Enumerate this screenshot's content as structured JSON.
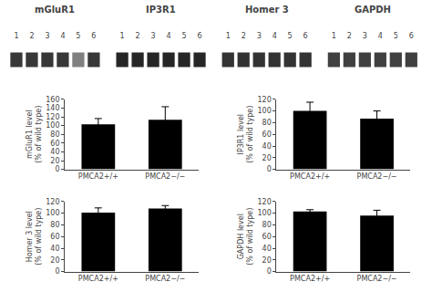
{
  "chart_data": [
    {
      "type": "blot",
      "title": "mGluR1",
      "categories": [
        "1",
        "2",
        "3",
        "4",
        "5",
        "6"
      ],
      "colors": [
        "#383838",
        "#383838",
        "#383838",
        "#383838",
        "#808080",
        "#383838"
      ],
      "tick_labels": "x",
      "grid": false
    },
    {
      "type": "blot",
      "title": "IP3R1",
      "categories": [
        "1",
        "2",
        "3",
        "4",
        "5",
        "6"
      ],
      "colors": [
        "#262626",
        "#262626",
        "#262626",
        "#262626",
        "#262626",
        "#262626"
      ],
      "tick_labels": "x",
      "grid": false
    },
    {
      "type": "blot",
      "title": "Homer 3",
      "categories": [
        "1",
        "2",
        "3",
        "4",
        "5",
        "6"
      ],
      "colors": [
        "#333333",
        "#333333",
        "#333333",
        "#333333",
        "#333333",
        "#333333"
      ],
      "tick_labels": "x",
      "grid": false
    },
    {
      "type": "blot",
      "title": "GAPDH",
      "categories": [
        "1",
        "2",
        "3",
        "4",
        "5",
        "6"
      ],
      "colors": [
        "#404040",
        "#404040",
        "#404040",
        "#404040",
        "#404040",
        "#404040"
      ],
      "tick_labels": "x",
      "grid": false
    },
    {
      "type": "bar",
      "ylabel": "mGluR1 level\n(% of wild type)",
      "categories": [
        "PMCA2+/+",
        "PMCA2−/−"
      ],
      "values": [
        103,
        113
      ],
      "errors": [
        13,
        30
      ],
      "color": "#000000",
      "ylim": [
        0,
        160
      ],
      "yticks": [
        0,
        20,
        40,
        60,
        80,
        100,
        120,
        140,
        160
      ],
      "grid": false
    },
    {
      "type": "bar",
      "ylabel": "IP3R1 level\n(% of wild type)",
      "categories": [
        "PMCA2+/+",
        "PMCA2−/−"
      ],
      "values": [
        100,
        87
      ],
      "errors": [
        15,
        13
      ],
      "color": "#000000",
      "ylim": [
        0,
        120
      ],
      "yticks": [
        0,
        20,
        40,
        60,
        80,
        100,
        120
      ],
      "grid": false
    },
    {
      "type": "bar",
      "ylabel": "Homer 3 level\n(% of wild type)",
      "categories": [
        "PMCA2+/+",
        "PMCA2−/−"
      ],
      "values": [
        101,
        108
      ],
      "errors": [
        8,
        5
      ],
      "color": "#000000",
      "ylim": [
        0,
        120
      ],
      "yticks": [
        0,
        20,
        40,
        60,
        80,
        100,
        120
      ],
      "grid": false
    },
    {
      "type": "bar",
      "ylabel": "GAPDH level\n(% of wild type)",
      "categories": [
        "PMCA2+/+",
        "PMCA2−/−"
      ],
      "values": [
        103,
        96
      ],
      "errors": [
        3,
        9
      ],
      "color": "#000000",
      "ylim": [
        0,
        120
      ],
      "yticks": [
        0,
        20,
        40,
        60,
        80,
        100,
        120
      ],
      "grid": false
    }
  ]
}
